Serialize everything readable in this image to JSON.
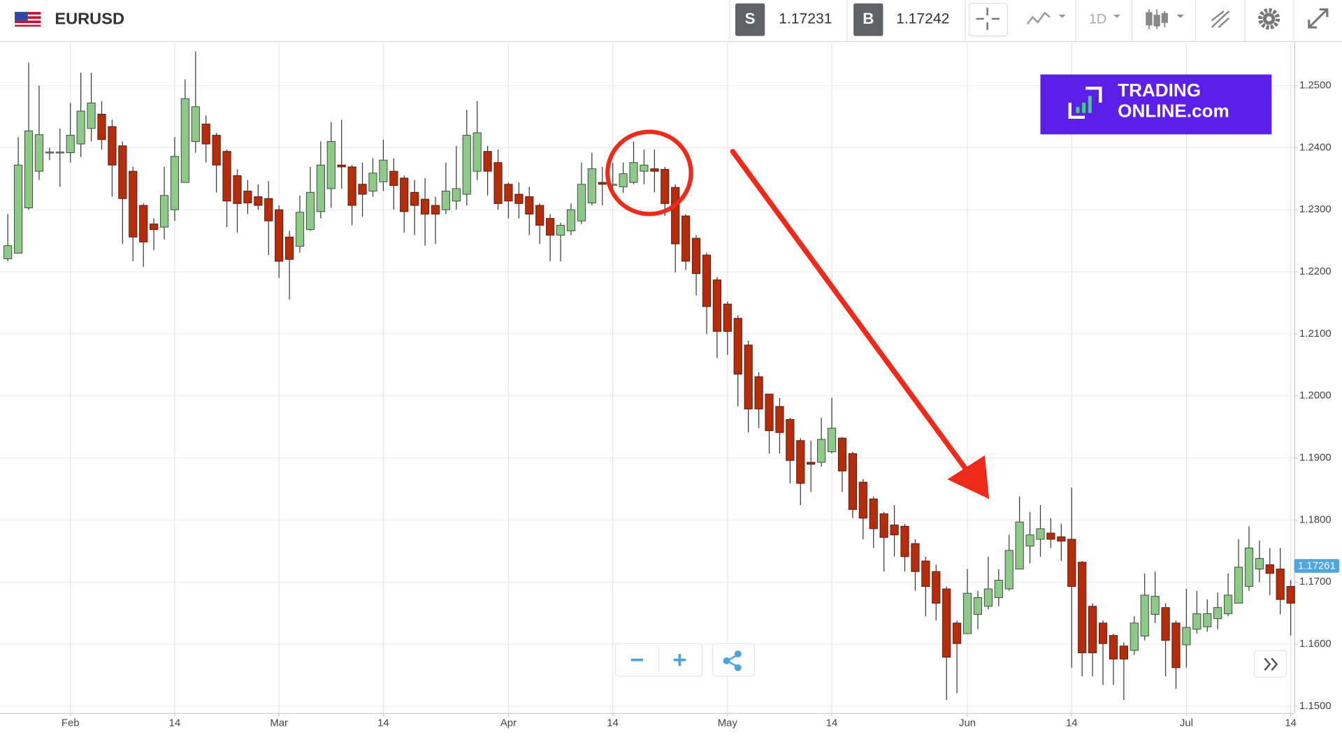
{
  "toolbar": {
    "symbol": "EURUSD",
    "sell_label": "S",
    "sell_price": "1.17231",
    "buy_label": "B",
    "buy_price": "1.17242",
    "interval": "1D"
  },
  "watermark": {
    "line1": "TRADING",
    "line2": "ONLINE.com"
  },
  "chart_data": {
    "type": "candlestick",
    "categories": [
      null,
      null,
      null,
      null,
      null,
      null,
      "Feb",
      null,
      null,
      null,
      null,
      null,
      null,
      null,
      null,
      null,
      "14",
      null,
      null,
      null,
      null,
      null,
      null,
      null,
      null,
      null,
      "Mar",
      null,
      null,
      null,
      null,
      null,
      null,
      null,
      null,
      null,
      "14",
      null,
      null,
      null,
      null,
      null,
      null,
      null,
      null,
      null,
      null,
      null,
      "Apr",
      null,
      null,
      null,
      null,
      null,
      null,
      null,
      null,
      null,
      "14",
      null,
      null,
      null,
      null,
      null,
      null,
      null,
      null,
      null,
      null,
      "May",
      null,
      null,
      null,
      null,
      null,
      null,
      null,
      null,
      null,
      "14",
      null,
      null,
      null,
      null,
      null,
      null,
      null,
      null,
      null,
      null,
      null,
      null,
      "Jun",
      null,
      null,
      null,
      null,
      null,
      null,
      null,
      null,
      null,
      "14",
      null,
      null,
      null,
      null,
      null,
      null,
      null,
      null,
      null,
      null,
      "Jul",
      null,
      null,
      null,
      null,
      null,
      null,
      null,
      null,
      null,
      "14"
    ],
    "open": [
      1.2221,
      1.223,
      1.2303,
      1.2362,
      1.2392,
      1.2392,
      1.2392,
      1.2406,
      1.2431,
      1.2454,
      1.2434,
      1.2403,
      1.2362,
      1.2307,
      1.2277,
      1.2272,
      1.23,
      1.2344,
      1.241,
      1.2438,
      1.242,
      1.2394,
      1.2355,
      1.233,
      1.2321,
      1.2318,
      1.23,
      1.2256,
      1.2241,
      1.2268,
      1.2297,
      1.2334,
      1.2372,
      1.2369,
      1.2341,
      1.233,
      1.2345,
      1.2362,
      1.2351,
      1.2328,
      1.2317,
      1.2307,
      1.23,
      1.2314,
      1.2325,
      1.2362,
      1.2394,
      1.2376,
      1.2341,
      1.2325,
      1.2321,
      1.2307,
      1.2286,
      1.2259,
      1.2266,
      1.2282,
      1.2311,
      1.2344,
      1.234,
      1.2337,
      1.2344,
      1.2362,
      1.2366,
      1.2365,
      1.2336,
      1.229,
      1.2254,
      1.2227,
      1.2187,
      1.2148,
      1.2125,
      1.2082,
      1.2031,
      1.2003,
      1.1983,
      1.1962,
      1.1928,
      1.1893,
      1.1893,
      1.191,
      1.1932,
      1.1907,
      1.1861,
      1.1834,
      1.181,
      1.1792,
      1.179,
      1.1762,
      1.1734,
      1.1717,
      1.1689,
      1.1634,
      1.1617,
      1.1648,
      1.1661,
      1.1675,
      1.1689,
      1.1721,
      1.1758,
      1.1769,
      1.1779,
      1.1773,
      1.1769,
      1.1732,
      1.1661,
      1.1634,
      1.1614,
      1.1597,
      1.159,
      1.1613,
      1.1648,
      1.1659,
      1.1634,
      1.1599,
      1.1624,
      1.1628,
      1.1641,
      1.1649,
      1.1666,
      1.1693,
      1.1721,
      1.1728,
      1.1721,
      1.1693
    ],
    "high": [
      1.2293,
      1.2417,
      1.2537,
      1.25,
      1.24,
      1.2431,
      1.2472,
      1.2521,
      1.2521,
      1.2475,
      1.2445,
      1.241,
      1.2369,
      1.231,
      1.2286,
      1.2369,
      1.2417,
      1.251,
      1.2555,
      1.2452,
      1.2424,
      1.2397,
      1.2365,
      1.2348,
      1.2341,
      1.2346,
      1.2307,
      1.2266,
      1.2323,
      1.2369,
      1.241,
      1.2441,
      1.2445,
      1.2372,
      1.2376,
      1.2383,
      1.2413,
      1.2383,
      1.2355,
      1.2348,
      1.2351,
      1.2321,
      1.2376,
      1.2403,
      1.2461,
      1.2475,
      1.2403,
      1.2397,
      1.2344,
      1.2344,
      1.2337,
      1.231,
      1.2293,
      1.2279,
      1.231,
      1.2376,
      1.2392,
      1.2369,
      1.2376,
      1.2376,
      1.241,
      1.2397,
      1.2397,
      1.2369,
      1.2341,
      1.2293,
      1.2259,
      1.2231,
      1.2192,
      1.2152,
      1.213,
      1.2089,
      1.2038,
      1.2003,
      1.1997,
      1.1965,
      1.1932,
      1.1928,
      1.1965,
      1.1997,
      1.1934,
      1.191,
      1.1866,
      1.1838,
      1.1813,
      1.1824,
      1.1794,
      1.1769,
      1.1741,
      1.1728,
      1.1693,
      1.1638,
      1.1721,
      1.1686,
      1.1741,
      1.1721,
      1.1776,
      1.1838,
      1.1813,
      1.1824,
      1.1803,
      1.1794,
      1.1852,
      1.1734,
      1.1666,
      1.1638,
      1.1617,
      1.1603,
      1.1645,
      1.1714,
      1.1717,
      1.1666,
      1.1638,
      1.1689,
      1.1686,
      1.1672,
      1.1683,
      1.1714,
      1.1769,
      1.179,
      1.1767,
      1.1755,
      1.1755,
      1.1703
    ],
    "low": [
      1.2217,
      1.223,
      1.23,
      1.2348,
      1.238,
      1.2337,
      1.2376,
      1.2385,
      1.241,
      1.2397,
      1.2321,
      1.2245,
      1.2217,
      1.2208,
      1.2235,
      1.2252,
      1.2282,
      1.2344,
      1.2392,
      1.2376,
      1.2328,
      1.2272,
      1.2263,
      1.2293,
      1.23,
      1.2227,
      1.219,
      1.2155,
      1.2231,
      1.2266,
      1.2286,
      1.2303,
      1.2334,
      1.2275,
      1.2289,
      1.2321,
      1.233,
      1.23,
      1.2263,
      1.2259,
      1.2242,
      1.2245,
      1.2293,
      1.23,
      1.2307,
      1.2348,
      1.2323,
      1.23,
      1.2286,
      1.2286,
      1.2259,
      1.2245,
      1.2217,
      1.2217,
      1.2259,
      1.2277,
      1.2307,
      1.2307,
      1.2327,
      1.2327,
      1.2341,
      1.2341,
      1.2328,
      1.229,
      1.2199,
      1.2203,
      1.2162,
      1.21,
      1.2061,
      1.2066,
      1.1983,
      1.1941,
      1.1948,
      1.1907,
      1.1907,
      1.1859,
      1.1824,
      1.1845,
      1.1886,
      1.1907,
      1.1845,
      1.1803,
      1.1769,
      1.1755,
      1.1717,
      1.1741,
      1.1717,
      1.1686,
      1.1645,
      1.1638,
      1.151,
      1.1521,
      1.1617,
      1.1624,
      1.1656,
      1.1661,
      1.1686,
      1.1721,
      1.173,
      1.1741,
      1.1755,
      1.1734,
      1.1562,
      1.1548,
      1.1548,
      1.1534,
      1.1534,
      1.151,
      1.1583,
      1.1606,
      1.1634,
      1.1548,
      1.1528,
      1.1562,
      1.1617,
      1.162,
      1.1624,
      1.1645,
      1.1666,
      1.1686,
      1.17,
      1.1679,
      1.1648,
      1.1614
    ],
    "close": [
      1.2242,
      1.2372,
      1.2427,
      1.2421,
      1.2393,
      1.2393,
      1.242,
      1.2459,
      1.2472,
      1.2413,
      1.2372,
      1.2318,
      1.2256,
      1.2248,
      1.2268,
      1.2323,
      1.2386,
      1.2479,
      1.2466,
      1.2406,
      1.2372,
      1.2314,
      1.231,
      1.2311,
      1.2307,
      1.2282,
      1.2217,
      1.222,
      1.2296,
      1.2328,
      1.2372,
      1.241,
      1.2369,
      1.2307,
      1.2325,
      1.2359,
      1.238,
      1.2339,
      1.2297,
      1.2307,
      1.2293,
      1.2293,
      1.233,
      1.2334,
      1.242,
      1.2424,
      1.2362,
      1.231,
      1.2314,
      1.231,
      1.2293,
      1.2275,
      1.2259,
      1.2275,
      1.23,
      1.2341,
      1.2366,
      1.2341,
      1.2341,
      1.2358,
      1.2376,
      1.2372,
      1.2362,
      1.231,
      1.2245,
      1.2217,
      1.2197,
      1.2144,
      1.2104,
      1.2104,
      1.2035,
      1.1979,
      1.1979,
      1.1944,
      1.1941,
      1.1896,
      1.1859,
      1.189,
      1.193,
      1.1948,
      1.1879,
      1.1817,
      1.1803,
      1.1786,
      1.1772,
      1.1776,
      1.1741,
      1.1717,
      1.1693,
      1.1666,
      1.1579,
      1.1601,
      1.1682,
      1.1675,
      1.1689,
      1.1703,
      1.1751,
      1.1797,
      1.1776,
      1.1786,
      1.1769,
      1.1766,
      1.1693,
      1.1586,
      1.1586,
      1.1601,
      1.1576,
      1.1576,
      1.1634,
      1.1679,
      1.1677,
      1.1606,
      1.1562,
      1.1627,
      1.1649,
      1.1649,
      1.1659,
      1.1679,
      1.1724,
      1.1755,
      1.1738,
      1.1714,
      1.1672,
      1.1666
    ],
    "up_color": "#8fc98a",
    "down_color": "#b52d0c",
    "ylim": [
      1.1489,
      1.2569
    ],
    "yticks": [
      {
        "value": 1.15,
        "label": "1.1500"
      },
      {
        "value": 1.16,
        "label": "1.1600"
      },
      {
        "value": 1.17,
        "label": "1.1700"
      },
      {
        "value": 1.18,
        "label": "1.1800"
      },
      {
        "value": 1.19,
        "label": "1.1900"
      },
      {
        "value": 1.2,
        "label": "1.2000"
      },
      {
        "value": 1.21,
        "label": "1.2100"
      },
      {
        "value": 1.22,
        "label": "1.2200"
      },
      {
        "value": 1.23,
        "label": "1.2300"
      },
      {
        "value": 1.24,
        "label": "1.2400"
      },
      {
        "value": 1.25,
        "label": "1.2500"
      }
    ],
    "last_price": {
      "value": 1.17261,
      "label": "1.17261"
    },
    "last_price_color": "#4ea6dc",
    "grid": true
  }
}
